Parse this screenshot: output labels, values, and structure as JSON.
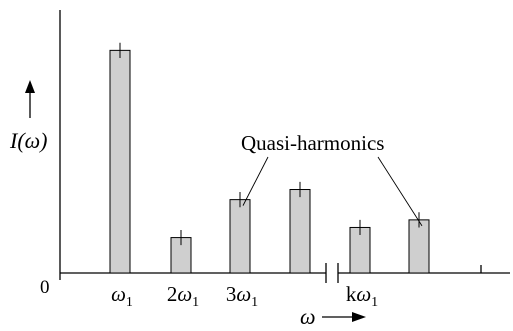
{
  "chart_data": {
    "type": "bar",
    "title": "",
    "xlabel": "ω",
    "ylabel": "I(ω)",
    "origin_label": "0",
    "axis_break": true,
    "bars": [
      {
        "label": "ω1",
        "value": 0.88,
        "err": 0.03
      },
      {
        "label": "2ω1",
        "value": 0.14,
        "err": 0.03
      },
      {
        "label": "3ω1",
        "value": 0.29,
        "err": 0.03
      },
      {
        "label": "",
        "value": 0.33,
        "err": 0.03
      },
      {
        "label": "kω1",
        "value": 0.18,
        "err": 0.03
      },
      {
        "label": "",
        "value": 0.21,
        "err": 0.03
      }
    ],
    "tick_labels": [
      {
        "base": "ω",
        "sub": "1",
        "prefix": ""
      },
      {
        "base": "ω",
        "sub": "1",
        "prefix": "2"
      },
      {
        "base": "ω",
        "sub": "1",
        "prefix": "3"
      },
      {
        "base": "ω",
        "sub": "1",
        "prefix": "k"
      }
    ],
    "annotation": {
      "text": "Quasi-harmonics",
      "targets": [
        2,
        5
      ]
    },
    "ylim": [
      0,
      1
    ],
    "grid": false,
    "legend": "none"
  }
}
